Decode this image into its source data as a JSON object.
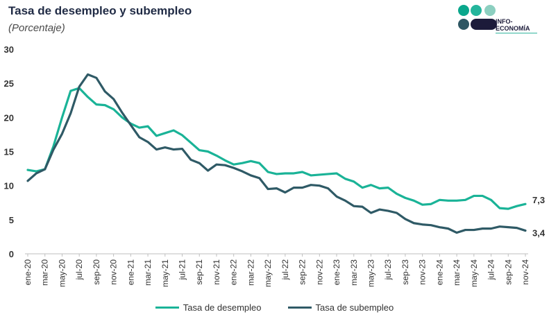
{
  "header": {
    "title": "Tasa de desempleo y subempleo",
    "subtitle": "(Porcentaje)"
  },
  "logo": {
    "text_line1": "INFO-",
    "text_line2": "ECONOMÍA",
    "colors": [
      "#0aa78c",
      "#24b59c",
      "#8ccfc0",
      "#2e5763",
      "#1c1b3a"
    ]
  },
  "colors": {
    "desempleo": "#1ab397",
    "subempleo": "#2f5a66",
    "axis_text": "#333333",
    "grid": "#d9d9d9"
  },
  "chart_data": {
    "type": "line",
    "ylim": [
      0,
      30
    ],
    "yticks": [
      "0",
      "5",
      "10",
      "15",
      "20",
      "25",
      "30"
    ],
    "x_tick_labels": [
      "ene-20",
      "mar-20",
      "may-20",
      "jul-20",
      "sep-20",
      "nov-20",
      "ene-21",
      "mar-21",
      "may-21",
      "jul-21",
      "sep-21",
      "nov-21",
      "ene-22",
      "mar-22",
      "may-22",
      "jul-22",
      "sep-22",
      "nov-22",
      "ene-23",
      "mar-23",
      "may-23",
      "jul-23",
      "sep-23",
      "nov-23",
      "ene-24",
      "mar-24",
      "may-24",
      "jul-24",
      "sep-24",
      "nov-24"
    ],
    "x": [
      "ene-20",
      "feb-20",
      "mar-20",
      "abr-20",
      "may-20",
      "jun-20",
      "jul-20",
      "ago-20",
      "sep-20",
      "oct-20",
      "nov-20",
      "dic-20",
      "ene-21",
      "feb-21",
      "mar-21",
      "abr-21",
      "may-21",
      "jun-21",
      "jul-21",
      "ago-21",
      "sep-21",
      "oct-21",
      "nov-21",
      "dic-21",
      "ene-22",
      "feb-22",
      "mar-22",
      "abr-22",
      "may-22",
      "jun-22",
      "jul-22",
      "ago-22",
      "sep-22",
      "oct-22",
      "nov-22",
      "dic-22",
      "ene-23",
      "feb-23",
      "mar-23",
      "abr-23",
      "may-23",
      "jun-23",
      "jul-23",
      "ago-23",
      "sep-23",
      "oct-23",
      "nov-23",
      "dic-23",
      "ene-24",
      "feb-24",
      "mar-24",
      "abr-24",
      "may-24",
      "jun-24",
      "jul-24",
      "ago-24",
      "sep-24",
      "oct-24",
      "nov-24"
    ],
    "series": [
      {
        "name": "Tasa de desempleo",
        "values": [
          12.3,
          12.1,
          12.4,
          15.8,
          20.0,
          23.9,
          24.3,
          23.0,
          21.9,
          21.8,
          21.2,
          20.0,
          19.1,
          18.5,
          18.7,
          17.3,
          17.7,
          18.1,
          17.4,
          16.3,
          15.2,
          15.0,
          14.4,
          13.7,
          13.1,
          13.3,
          13.6,
          13.3,
          12.0,
          11.7,
          11.8,
          11.8,
          12.0,
          11.5,
          11.6,
          11.7,
          11.8,
          11.0,
          10.6,
          9.7,
          10.1,
          9.6,
          9.7,
          8.8,
          8.2,
          7.8,
          7.2,
          7.3,
          7.9,
          7.8,
          7.8,
          7.9,
          8.5,
          8.5,
          7.9,
          6.7,
          6.6,
          7.0,
          7.3
        ]
      },
      {
        "name": "Tasa de subempleo",
        "values": [
          10.7,
          11.8,
          12.4,
          15.3,
          17.6,
          20.6,
          24.5,
          26.3,
          25.8,
          23.8,
          22.7,
          20.7,
          18.9,
          17.1,
          16.4,
          15.3,
          15.6,
          15.3,
          15.4,
          13.8,
          13.3,
          12.2,
          13.1,
          13.0,
          12.6,
          12.1,
          11.5,
          11.1,
          9.5,
          9.6,
          9.0,
          9.7,
          9.7,
          10.1,
          10.0,
          9.6,
          8.4,
          7.8,
          7.0,
          6.9,
          6.0,
          6.5,
          6.3,
          6.0,
          5.1,
          4.5,
          4.3,
          4.2,
          3.9,
          3.7,
          3.1,
          3.5,
          3.5,
          3.7,
          3.7,
          4.0,
          3.9,
          3.8,
          3.4
        ]
      }
    ],
    "end_labels": [
      "7,3",
      "3,4"
    ],
    "legend_position": "bottom",
    "grid": false
  },
  "legend": {
    "items": [
      "Tasa de desempleo",
      "Tasa de subempleo"
    ]
  }
}
